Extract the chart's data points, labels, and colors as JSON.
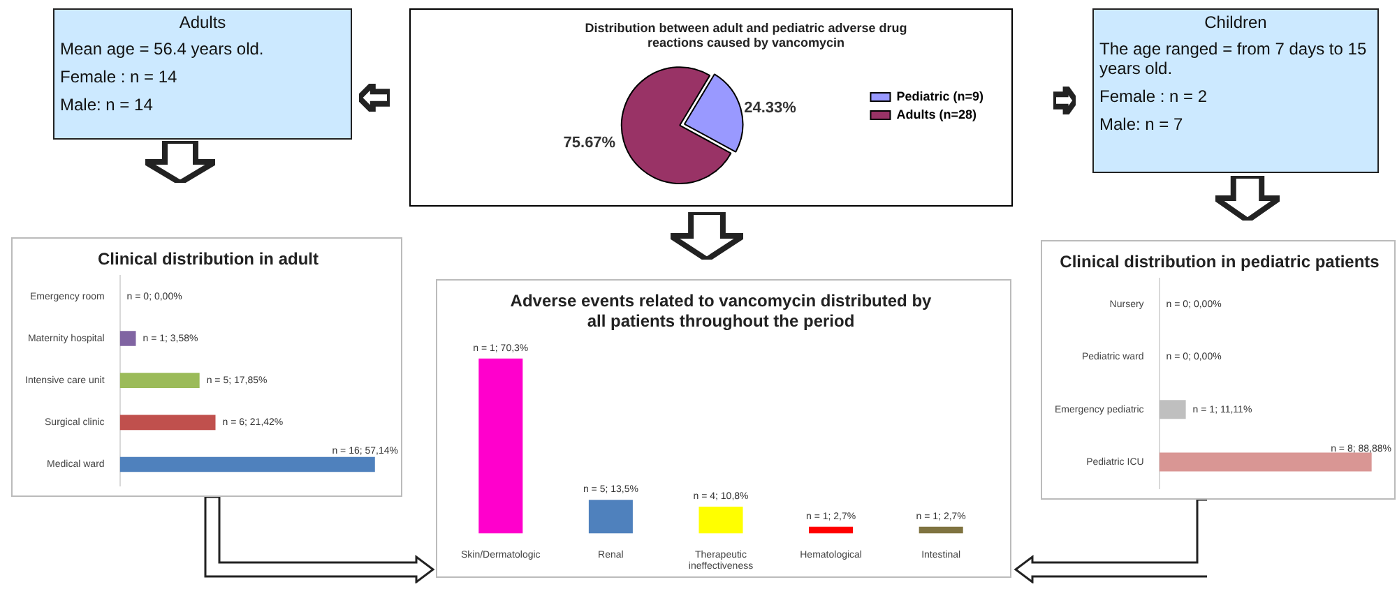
{
  "chart_data": [
    {
      "type": "other",
      "title": "Adults",
      "annotations": [
        "Mean age = 56.4 years old.",
        "Female : n = 14",
        "Male: n = 14"
      ]
    },
    {
      "type": "pie",
      "title": "Distribution between adult and pediatric adverse drug reactions caused by vancomycin",
      "categories": [
        "Pediatric (n=9)",
        "Adults (n=28)"
      ],
      "values": [
        24.33,
        75.67
      ],
      "colors": [
        "#9999ff",
        "#993366"
      ],
      "value_labels": [
        "24.33%",
        "75.67%"
      ],
      "legend": "right"
    },
    {
      "type": "other",
      "title": "Children",
      "annotations": [
        "The age ranged = from 7 days to 15 years old.",
        "Female : n = 2",
        "Male: n = 7"
      ]
    },
    {
      "type": "bar",
      "orientation": "horizontal",
      "title": "Clinical distribution in adult",
      "categories": [
        "Emergency room",
        "Maternity hospital",
        "Intensive care unit",
        "Surgical clinic",
        "Medical ward"
      ],
      "values": [
        0,
        3.58,
        17.85,
        21.42,
        57.14
      ],
      "colors": [
        "#bfbfbf",
        "#8064a2",
        "#9bbb59",
        "#c0504d",
        "#4f81bd"
      ],
      "value_labels": [
        "n = 0; 0,00%",
        "n = 1; 3,58%",
        "n = 5; 17,85%",
        "n = 6; 21,42%",
        "n = 16; 57,14%"
      ]
    },
    {
      "type": "bar",
      "title": "Adverse events related to vancomycin distributed by all patients throughout the period",
      "categories": [
        "Skin/Dermatologic",
        "Renal",
        "Therapeutic ineffectiveness",
        "Hematological",
        "Intestinal"
      ],
      "values": [
        70.3,
        13.5,
        10.8,
        2.7,
        2.7
      ],
      "colors": [
        "#ff00cc",
        "#4f81bd",
        "#ffff00",
        "#ff0000",
        "#7f7340"
      ],
      "value_labels": [
        "n = 1; 70,3%",
        "n = 5; 13,5%",
        "n = 4; 10,8%",
        "n = 1; 2,7%",
        "n = 1; 2,7%"
      ]
    },
    {
      "type": "bar",
      "orientation": "horizontal",
      "title": "Clinical distribution in pediatric patients",
      "categories": [
        "Nursery",
        "Pediatric ward",
        "Emergency pediatric",
        "Pediatric ICU"
      ],
      "values": [
        0,
        0,
        11.11,
        88.88
      ],
      "colors": [
        "#bfbfbf",
        "#bfbfbf",
        "#bfbfbf",
        "#d99694"
      ],
      "value_labels": [
        "n = 0; 0,00%",
        "n = 0; 0,00%",
        "n = 1; 11,11%",
        "n = 8; 88,88%"
      ]
    }
  ]
}
